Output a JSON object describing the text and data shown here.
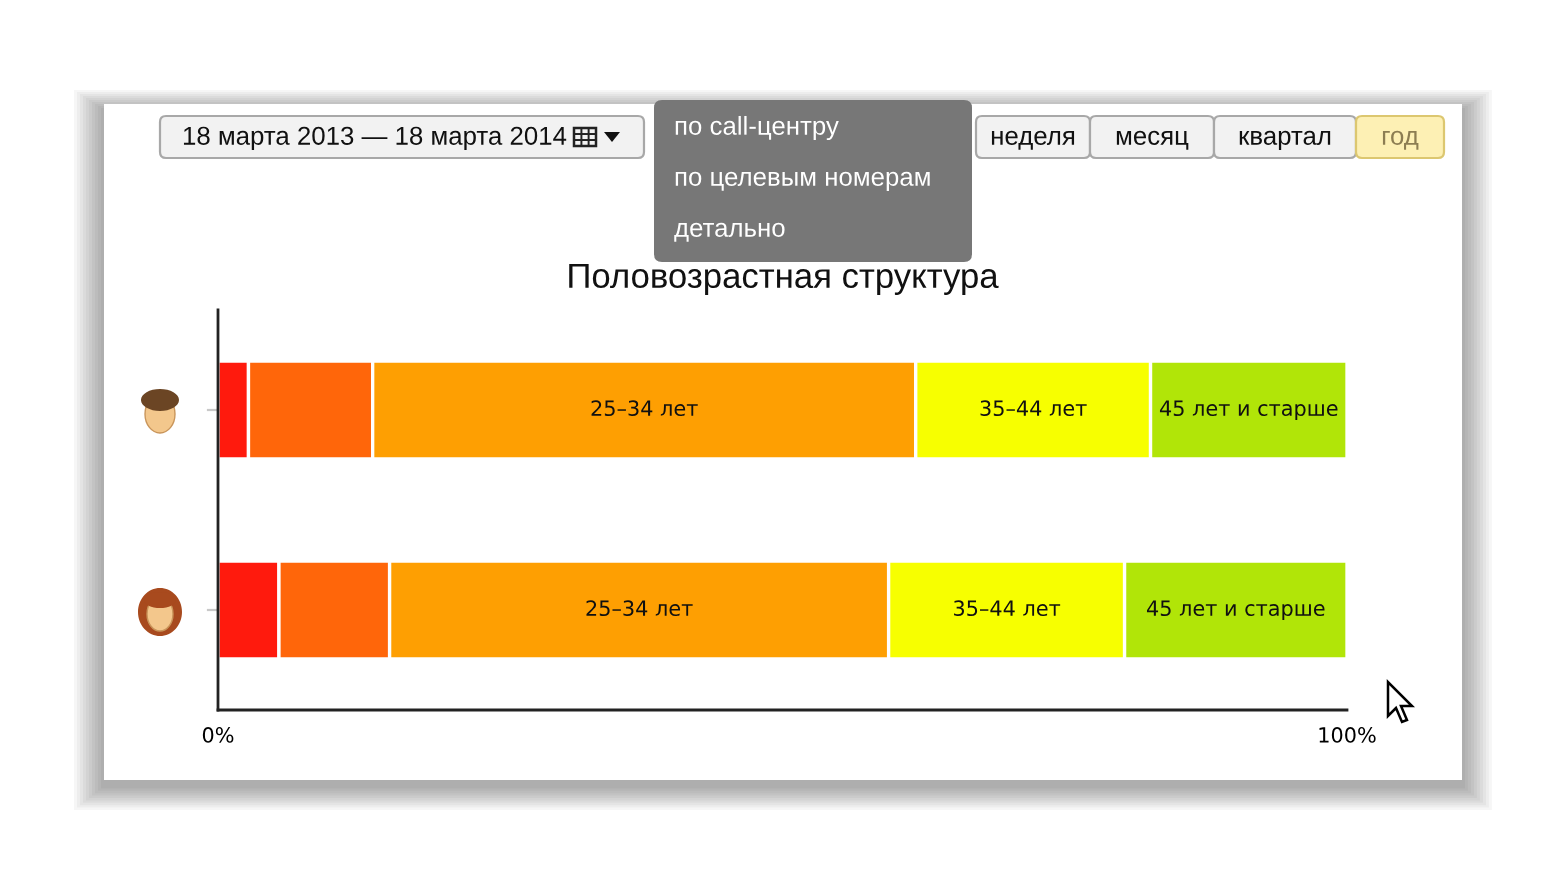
{
  "chart_data": {
    "type": "bar",
    "orientation": "horizontal",
    "stacked": true,
    "title": "Половозрастная структура",
    "categories": [
      null,
      null
    ],
    "series": [
      {
        "color": "#ff1a0d",
        "values": [
          2.7,
          5.4
        ]
      },
      {
        "color": "#ff660a",
        "values": [
          11.0,
          9.8
        ]
      },
      {
        "name": "25–34 лет",
        "color": "#fe9f02",
        "values": [
          48.1,
          44.2
        ]
      },
      {
        "name": "35–44 лет",
        "color": "#f7ff00",
        "values": [
          20.8,
          20.9
        ]
      },
      {
        "name": "45 лет и старше",
        "color": "#b1e508",
        "values": [
          17.4,
          19.7
        ]
      }
    ],
    "xlim": [
      0,
      100
    ],
    "xticks": [
      {
        "value": 0,
        "label": "0%"
      },
      {
        "value": 100,
        "label": "100%"
      }
    ],
    "annotations": [
      "18 марта 2013 — 18 марта 2014",
      "неделя",
      "месяц",
      "квартал",
      "год",
      "по call-центру",
      "по целевым номерам",
      "детально"
    ]
  }
}
